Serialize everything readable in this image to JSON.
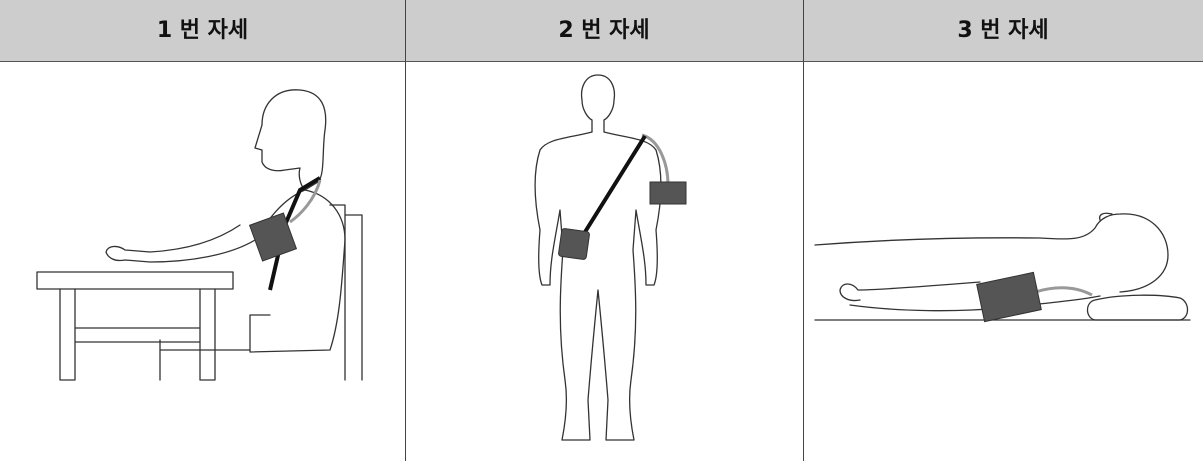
{
  "table": {
    "headers": [
      "1 번 자세",
      "2 번 자세",
      "3 번 자세"
    ]
  }
}
